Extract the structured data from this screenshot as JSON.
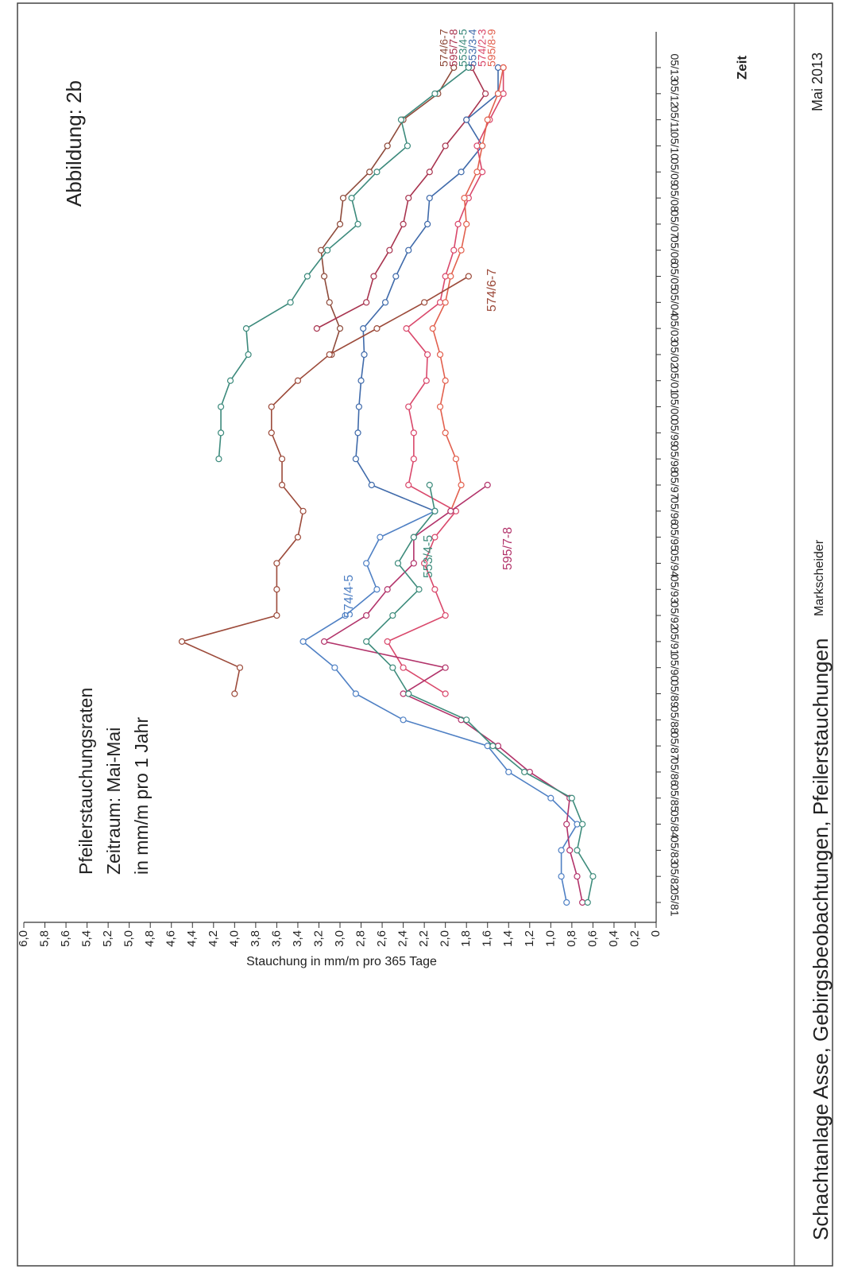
{
  "chart_data": {
    "type": "line",
    "title": "Abbildung:  2b",
    "subtitle": [
      "Pfeilerstauchungsraten",
      "Zeitraum: Mai-Mai",
      "in mm/m pro 1 Jahr"
    ],
    "y_label": "Stauchung in mm/m pro 365 Tage",
    "x_label": "Zeit",
    "footer": "Schachtanlage Asse, Gebirgsbeobachtungen, Pfeilerstauchungen",
    "signature": "Markscheider",
    "date": "Mai 2013",
    "categories": [
      "05/81",
      "05/82",
      "05/83",
      "05/84",
      "05/85",
      "05/86",
      "05/87",
      "05/88",
      "05/89",
      "05/90",
      "05/91",
      "05/92",
      "05/93",
      "05/94",
      "05/95",
      "05/96",
      "05/97",
      "05/98",
      "05/99",
      "05/00",
      "05/01",
      "05/02",
      "05/03",
      "05/04",
      "05/05",
      "05/06",
      "05/07",
      "05/08",
      "05/09",
      "05/10",
      "05/11",
      "05/12",
      "05/13"
    ],
    "ylim": [
      0,
      6.0
    ],
    "yticks": [
      0,
      {
        "value": 0.2,
        "label": "0,2"
      },
      {
        "value": 0.4,
        "label": "0,4"
      },
      {
        "value": 0.6,
        "label": "0,6"
      },
      {
        "value": 0.8,
        "label": "0,8"
      },
      {
        "value": 1.0,
        "label": "1,0"
      },
      {
        "value": 1.2,
        "label": "1,2"
      },
      {
        "value": 1.4,
        "label": "1,4"
      },
      {
        "value": 1.6,
        "label": "1,6"
      },
      {
        "value": 1.8,
        "label": "1,8"
      },
      {
        "value": 2.0,
        "label": "2,0"
      },
      {
        "value": 2.2,
        "label": "2,2"
      },
      {
        "value": 2.4,
        "label": "2,4"
      },
      {
        "value": 2.6,
        "label": "2,6"
      },
      {
        "value": 2.8,
        "label": "2,8"
      },
      {
        "value": 3.0,
        "label": "3,0"
      },
      {
        "value": 3.2,
        "label": "3,2"
      },
      {
        "value": 3.4,
        "label": "3,4"
      },
      {
        "value": 3.6,
        "label": "3,6"
      },
      {
        "value": 3.8,
        "label": "3,8"
      },
      {
        "value": 4.0,
        "label": "4,0"
      },
      {
        "value": 4.2,
        "label": "4,2"
      },
      {
        "value": 4.4,
        "label": "4,4"
      },
      {
        "value": 4.6,
        "label": "4,6"
      },
      {
        "value": 4.8,
        "label": "4,8"
      },
      {
        "value": 5.0,
        "label": "5,0"
      },
      {
        "value": 5.2,
        "label": "5,2"
      },
      {
        "value": 5.4,
        "label": "5,4"
      },
      {
        "value": 5.6,
        "label": "5,6"
      },
      {
        "value": 5.8,
        "label": "5,8"
      },
      {
        "value": 6.0,
        "label": "6,0"
      }
    ],
    "grid": false,
    "series": [
      {
        "name": "574/6-7",
        "color": "#8e4a3a",
        "values": [
          null,
          null,
          null,
          null,
          null,
          null,
          null,
          null,
          null,
          null,
          null,
          null,
          null,
          null,
          null,
          null,
          null,
          null,
          null,
          null,
          null,
          3.08,
          3.0,
          3.1,
          3.15,
          3.18,
          3.0,
          2.97,
          2.72,
          2.55,
          2.4,
          2.07,
          1.92
        ]
      },
      {
        "name": "595/7-8",
        "color": "#a8344f",
        "values": [
          null,
          null,
          null,
          null,
          null,
          null,
          null,
          null,
          null,
          null,
          null,
          null,
          null,
          null,
          null,
          null,
          null,
          null,
          null,
          null,
          null,
          null,
          3.22,
          2.75,
          2.68,
          2.53,
          2.4,
          2.35,
          2.15,
          2.0,
          1.8,
          1.62,
          1.75
        ]
      },
      {
        "name": "553/4-5",
        "color": "#3c8a7c",
        "values": [
          null,
          null,
          null,
          null,
          null,
          null,
          null,
          null,
          null,
          null,
          null,
          null,
          null,
          null,
          null,
          null,
          null,
          4.15,
          4.13,
          4.13,
          4.04,
          3.87,
          3.89,
          3.47,
          3.31,
          3.12,
          2.83,
          2.89,
          2.65,
          2.36,
          2.42,
          2.1,
          1.78
        ]
      },
      {
        "name": "553/3-4",
        "color": "#3f6aaa",
        "values": [
          null,
          null,
          null,
          null,
          null,
          null,
          null,
          null,
          null,
          null,
          null,
          null,
          null,
          null,
          null,
          2.1,
          2.7,
          2.85,
          2.83,
          2.82,
          2.8,
          2.77,
          2.78,
          2.57,
          2.47,
          2.35,
          2.17,
          2.15,
          1.85,
          1.65,
          1.8,
          1.5,
          1.5
        ]
      },
      {
        "name": "574/2-3",
        "color": "#d9486b",
        "values": [
          null,
          null,
          null,
          null,
          null,
          null,
          null,
          null,
          2.0,
          2.4,
          2.55,
          2.0,
          2.1,
          2.2,
          2.1,
          1.9,
          2.35,
          2.3,
          2.3,
          2.35,
          2.18,
          2.17,
          2.37,
          2.05,
          2.0,
          1.92,
          1.88,
          1.78,
          1.65,
          1.7,
          1.58,
          1.45,
          1.45
        ]
      },
      {
        "name": "595/8-9",
        "color": "#e2604e",
        "values": [
          null,
          null,
          null,
          null,
          null,
          null,
          null,
          null,
          null,
          null,
          null,
          null,
          null,
          null,
          null,
          1.95,
          1.85,
          1.9,
          2.0,
          2.05,
          2.0,
          2.05,
          2.12,
          2.0,
          1.95,
          1.85,
          1.8,
          1.82,
          1.7,
          1.65,
          1.6,
          1.5,
          1.45
        ]
      },
      {
        "name": "574/4-5",
        "color": "#4f80c4",
        "values": [
          0.85,
          0.9,
          0.9,
          0.75,
          1.0,
          1.4,
          1.6,
          2.4,
          2.85,
          3.05,
          3.35,
          2.95,
          2.65,
          2.75,
          2.62,
          2.1,
          null,
          null,
          null,
          null,
          null,
          null,
          null,
          null,
          null,
          null,
          null,
          null,
          null,
          null,
          null,
          null,
          null
        ]
      },
      {
        "name": "574/6-7",
        "color": "#9c4a3a",
        "values": [
          null,
          null,
          null,
          null,
          null,
          null,
          null,
          null,
          4.0,
          3.95,
          4.5,
          3.6,
          3.6,
          3.6,
          3.4,
          3.35,
          3.55,
          3.55,
          3.65,
          3.65,
          3.4,
          3.1,
          2.65,
          2.2,
          1.78,
          null,
          null,
          null,
          null,
          null,
          null,
          null,
          null
        ]
      },
      {
        "name": "595/7-8",
        "color": "#b2336a",
        "values": [
          0.7,
          0.75,
          0.82,
          0.85,
          0.82,
          1.2,
          1.5,
          1.85,
          2.4,
          2.0,
          3.15,
          2.75,
          2.55,
          2.3,
          2.3,
          1.95,
          1.6,
          null,
          null,
          null,
          null,
          null,
          null,
          null,
          null,
          null,
          null,
          null,
          null,
          null,
          null,
          null,
          null
        ]
      },
      {
        "name": "553/4-5",
        "color": "#3e8c7c",
        "values": [
          0.65,
          0.6,
          0.75,
          0.7,
          0.8,
          1.25,
          1.55,
          1.8,
          2.35,
          2.5,
          2.75,
          2.5,
          2.25,
          2.45,
          2.3,
          2.1,
          2.15,
          null,
          null,
          null,
          null,
          null,
          null,
          null,
          null,
          null,
          null,
          null,
          null,
          null,
          null,
          null,
          null
        ]
      }
    ]
  }
}
